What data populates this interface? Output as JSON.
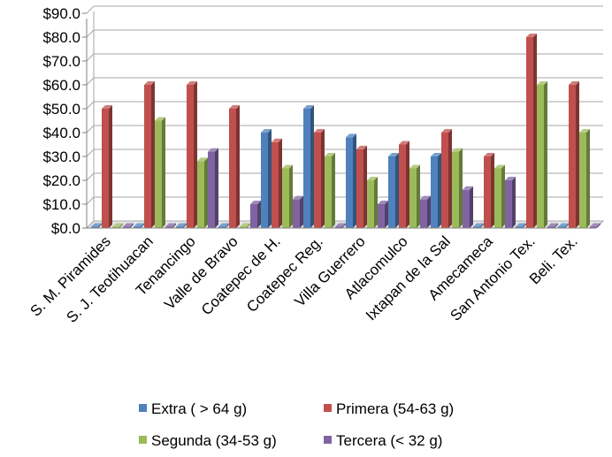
{
  "chart_data": {
    "type": "bar",
    "title": "",
    "xlabel": "",
    "ylabel": "",
    "ylim": [
      0,
      90
    ],
    "ytick_step": 10,
    "ytick_labels": [
      "$0.0",
      "$10.0",
      "$20.0",
      "$30.0",
      "$40.0",
      "$50.0",
      "$60.0",
      "$70.0",
      "$80.0",
      "$90.0"
    ],
    "grid": true,
    "legend_position": "bottom",
    "style": "3d-clustered",
    "categories": [
      "S. M. Piramides",
      "S. J. Teotihuacan",
      "Tenancingo",
      "Valle de Bravo",
      "Coatepec de H.",
      "Coatepec Reg.",
      "Villa Guerrero",
      "Atlacomulco",
      "Ixtapan de la Sal",
      "Amecameca",
      "San Antonio Tex.",
      "Beli. Tex."
    ],
    "series": [
      {
        "name": "Extra ( > 64 g)",
        "color": "#4f81bd",
        "values": [
          0,
          0,
          0,
          0,
          40,
          50,
          38,
          30,
          30,
          0,
          0,
          0
        ]
      },
      {
        "name": "Primera (54-63 g)",
        "color": "#c0504d",
        "values": [
          50,
          60,
          60,
          50,
          36,
          40,
          33,
          35,
          40,
          30,
          80,
          60
        ]
      },
      {
        "name": "Segunda (34-53 g)",
        "color": "#9bbb59",
        "values": [
          0,
          45,
          28,
          0,
          25,
          30,
          20,
          25,
          32,
          25,
          60,
          40
        ]
      },
      {
        "name": "Tercera (< 32 g)",
        "color": "#8064a2",
        "values": [
          0,
          0,
          32,
          10,
          12,
          0,
          10,
          12,
          16,
          20,
          0,
          0
        ]
      }
    ]
  }
}
